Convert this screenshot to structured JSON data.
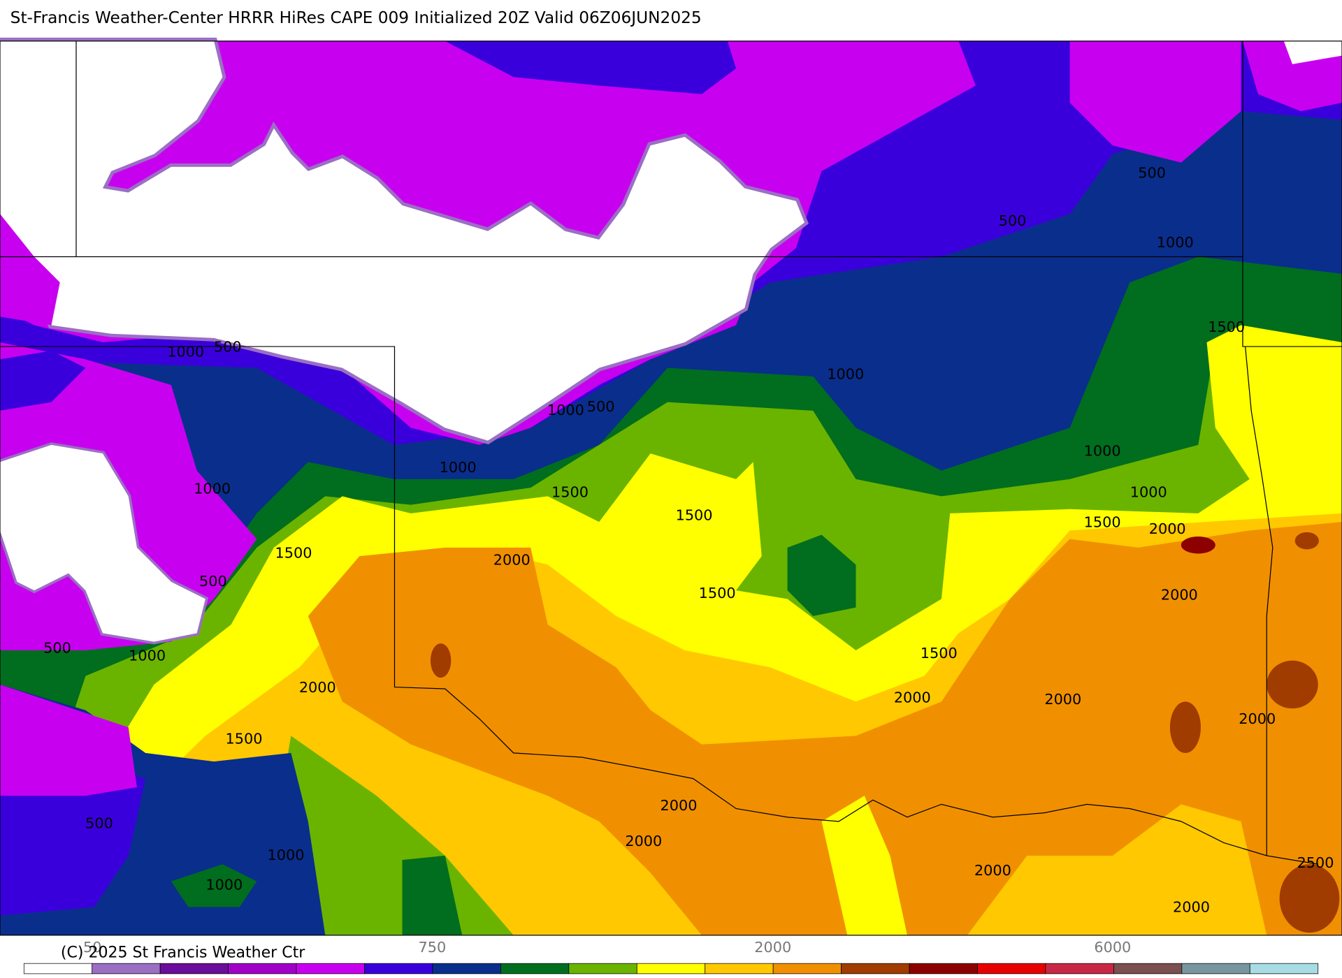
{
  "header": {
    "title": "St-Francis Weather-Center HRRR HiRes CAPE  009 Initialized  20Z Valid 06Z06JUN2025"
  },
  "map": {
    "contour_labels": [
      "500",
      "500",
      "1000",
      "1500",
      "1000",
      "500",
      "1000",
      "1000",
      "500",
      "1000",
      "1000",
      "1000",
      "1500",
      "1000",
      "1500",
      "1500",
      "2000",
      "1500",
      "2000",
      "500",
      "1500",
      "2000",
      "500",
      "1000",
      "1500",
      "2000",
      "2000",
      "2000",
      "2000",
      "1500",
      "2000",
      "500",
      "2000",
      "1000",
      "2500",
      "2000",
      "1000",
      "2000"
    ]
  },
  "colorbar": {
    "colors": [
      "#ffffff",
      "#9b6fc4",
      "#6a0d9a",
      "#a000c8",
      "#c800f0",
      "#3a00dc",
      "#0a2e8c",
      "#006e1e",
      "#6ab400",
      "#ffff00",
      "#ffc800",
      "#f09000",
      "#a03c00",
      "#8c0000",
      "#e60000",
      "#c82846",
      "#7a5050",
      "#7896a0",
      "#a8dce4"
    ],
    "labels": [
      "50",
      "750",
      "2000",
      "6000"
    ]
  },
  "footer": {
    "copyright": "(C) 2025 St Francis Weather Ctr"
  }
}
